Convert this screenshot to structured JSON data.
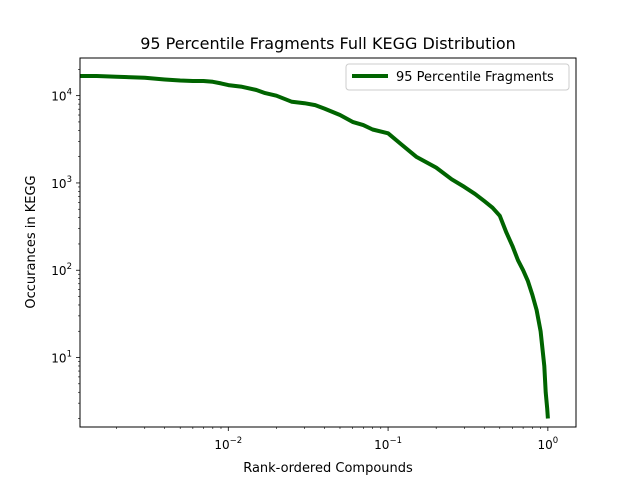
{
  "chart_data": {
    "type": "line",
    "title": "95 Percentile Fragments Full KEGG Distribution",
    "xlabel": "Rank-ordered Compounds",
    "ylabel": "Occurances in KEGG",
    "xscale": "log",
    "yscale": "log",
    "xlim": [
      0.00118,
      1.5
    ],
    "ylim": [
      1.6,
      27000
    ],
    "xticks": [
      {
        "value": 0.01,
        "base": "10",
        "exp": "−2"
      },
      {
        "value": 0.1,
        "base": "10",
        "exp": "−1"
      },
      {
        "value": 1,
        "base": "10",
        "exp": "0"
      }
    ],
    "yticks": [
      {
        "value": 10,
        "base": "10",
        "exp": "1"
      },
      {
        "value": 100,
        "base": "10",
        "exp": "2"
      },
      {
        "value": 1000,
        "base": "10",
        "exp": "3"
      },
      {
        "value": 10000,
        "base": "10",
        "exp": "4"
      }
    ],
    "legend": {
      "position": "upper-right"
    },
    "grid": false,
    "series": [
      {
        "name": "95 Percentile Fragments",
        "color": "#006400",
        "x": [
          0.00118,
          0.0015,
          0.002,
          0.003,
          0.004,
          0.005,
          0.006,
          0.007,
          0.008,
          0.009,
          0.01,
          0.012,
          0.015,
          0.017,
          0.02,
          0.025,
          0.03,
          0.035,
          0.04,
          0.05,
          0.06,
          0.07,
          0.08,
          0.1,
          0.12,
          0.15,
          0.2,
          0.25,
          0.3,
          0.35,
          0.4,
          0.45,
          0.5,
          0.55,
          0.6,
          0.65,
          0.7,
          0.75,
          0.8,
          0.85,
          0.9,
          0.95,
          0.97,
          0.99,
          1.0
        ],
        "y": [
          16800,
          16800,
          16500,
          16000,
          15300,
          14900,
          14700,
          14700,
          14400,
          13800,
          13200,
          12700,
          11600,
          10700,
          10000,
          8500,
          8200,
          7800,
          7100,
          6000,
          5000,
          4600,
          4100,
          3700,
          2800,
          2000,
          1500,
          1100,
          900,
          750,
          620,
          520,
          420,
          270,
          190,
          130,
          100,
          75,
          52,
          35,
          20,
          8,
          4,
          2.6,
          2
        ]
      }
    ]
  }
}
